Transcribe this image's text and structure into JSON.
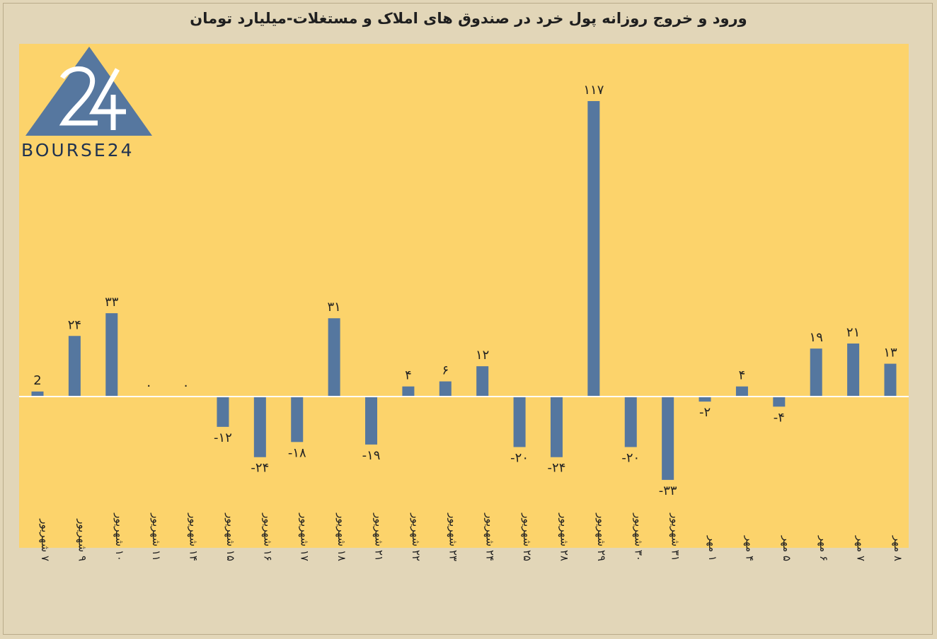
{
  "chart_data": {
    "type": "bar",
    "title": "ورود و خروج روزانه پول خرد در صندوق های املاک و مستغلات-میلیارد تومان",
    "categories": [
      "۷ شهریور",
      "۹ شهریور",
      "۱۰ شهریور",
      "۱۱ شهریور",
      "۱۴ شهریور",
      "۱۵ شهریور",
      "۱۶ شهریور",
      "۱۷ شهریور",
      "۱۸ شهریور",
      "۲۱ شهریور",
      "۲۲ شهریور",
      "۲۳ شهریور",
      "۲۴ شهریور",
      "۲۵ شهریور",
      "۲۸ شهریور",
      "۲۹ شهریور",
      "۳۰ شهریور",
      "۳۱ شهریور",
      "۱ مهر",
      "۴ مهر",
      "۵ مهر",
      "۶ مهر",
      "۷ مهر",
      "۸ مهر"
    ],
    "values": [
      2,
      24,
      33,
      0,
      0,
      -12,
      -24,
      -18,
      31,
      -19,
      4,
      6,
      12,
      -20,
      -24,
      117,
      -20,
      -33,
      -2,
      4,
      -4,
      19,
      21,
      13
    ],
    "value_labels": [
      "2",
      "۲۴",
      "۳۳",
      "۰",
      "۰",
      "-۱۲",
      "-۲۴",
      "-۱۸",
      "۳۱",
      "-۱۹",
      "۴",
      "۶",
      "۱۲",
      "-۲۰",
      "-۲۴",
      "۱۱۷",
      "-۲۰",
      "-۳۳",
      "-۲",
      "۴",
      "-۴",
      "۱۹",
      "۲۱",
      "۱۳"
    ],
    "ylim": [
      -60,
      120
    ],
    "grid": false,
    "legend": "none",
    "colors": {
      "bar": "#55779f",
      "plot_bg": "#fcd36b",
      "page_bg": "#e2d6b8",
      "zero_line": "#ffffff"
    }
  },
  "logo": {
    "text": "BOURSE24",
    "mark": "24",
    "color": "#56779f"
  }
}
